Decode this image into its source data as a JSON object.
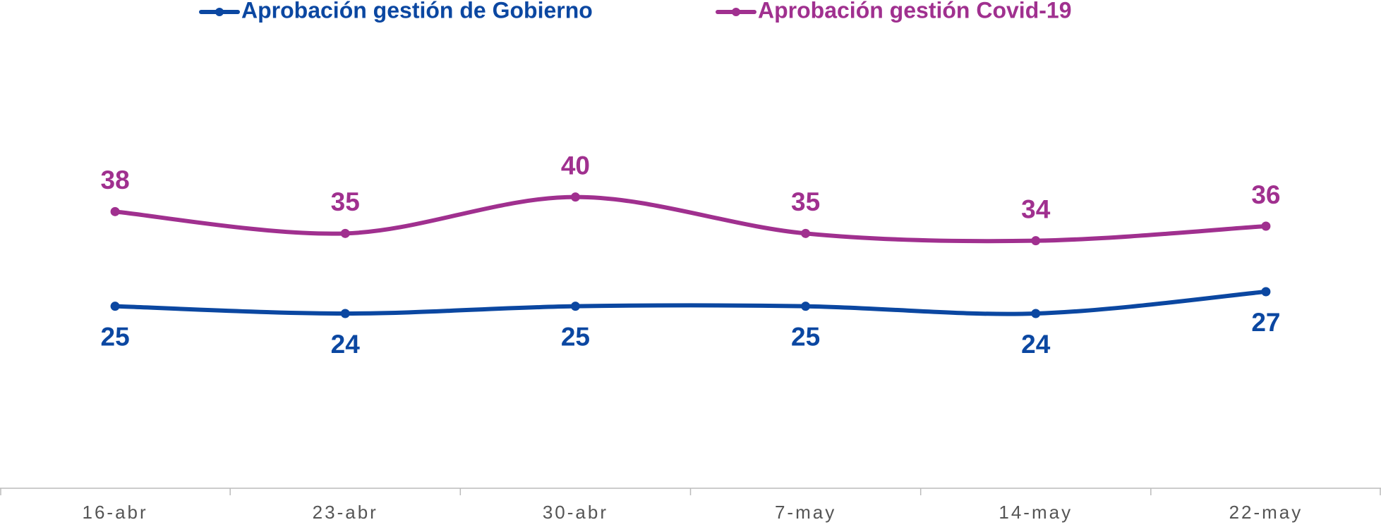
{
  "chart_data": {
    "type": "line",
    "categories": [
      "16-abr",
      "23-abr",
      "30-abr",
      "7-may",
      "14-may",
      "22-may"
    ],
    "series": [
      {
        "name": "Aprobación gestión de Gobierno",
        "color": "#0b47a1",
        "values": [
          25,
          24,
          25,
          25,
          24,
          27
        ]
      },
      {
        "name": "Aprobación gestión Covid-19",
        "color": "#a0308f",
        "values": [
          38,
          35,
          40,
          35,
          34,
          36
        ]
      }
    ],
    "ylim": [
      0,
      60
    ]
  }
}
